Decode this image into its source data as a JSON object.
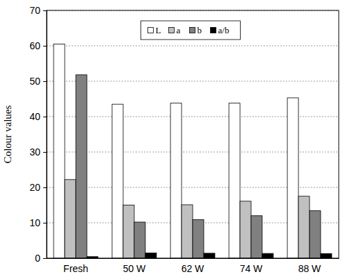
{
  "chart_data": {
    "type": "bar",
    "y_label": "Colour values",
    "categories": [
      "Fresh",
      "50 W",
      "62 W",
      "74 W",
      "88 W"
    ],
    "series": [
      {
        "name": "L",
        "color": "#ffffff",
        "values": [
          60.5,
          43.5,
          43.8,
          43.8,
          45.3
        ]
      },
      {
        "name": "a",
        "color": "#c0c0c0",
        "values": [
          22.2,
          15.0,
          15.1,
          16.1,
          17.5
        ]
      },
      {
        "name": "b",
        "color": "#808080",
        "values": [
          51.8,
          10.2,
          10.9,
          12.0,
          13.4
        ]
      },
      {
        "name": "a/b",
        "color": "#000000",
        "values": [
          0.43,
          1.47,
          1.39,
          1.34,
          1.31
        ]
      }
    ],
    "ylim": [
      0,
      70
    ],
    "yticks": [
      0,
      10,
      20,
      30,
      40,
      50,
      60,
      70
    ],
    "grid": true,
    "legend": "top"
  }
}
